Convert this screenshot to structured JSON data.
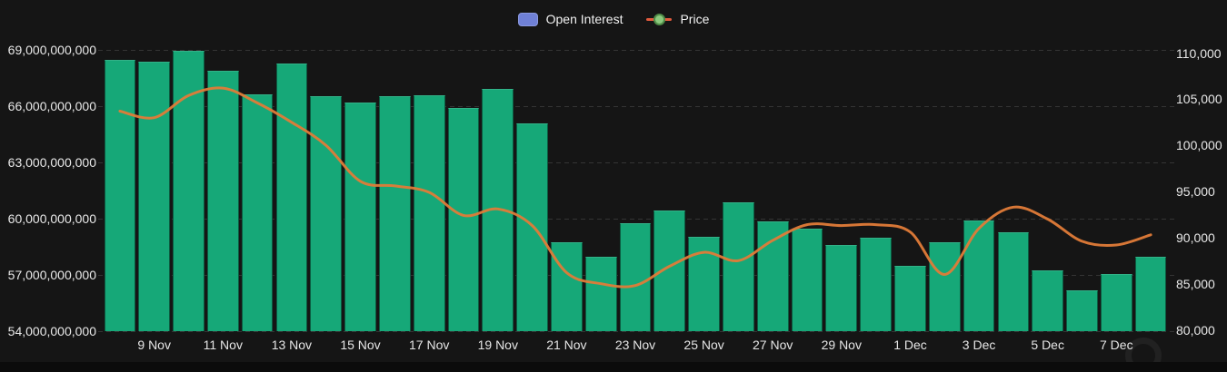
{
  "legend": {
    "open_interest_label": "Open Interest",
    "price_label": "Price"
  },
  "axes": {
    "left_axis_labels": [
      "69,000,000,000",
      "66,000,000,000",
      "63,000,000,000",
      "60,000,000,000",
      "57,000,000,000",
      "54,000,000,000"
    ],
    "right_axis_labels": [
      "110,000",
      "105,000",
      "100,000",
      "95,000",
      "90,000",
      "85,000",
      "80,000"
    ],
    "x_tick_labels": [
      "9 Nov",
      "11 Nov",
      "13 Nov",
      "15 Nov",
      "17 Nov",
      "19 Nov",
      "21 Nov",
      "23 Nov",
      "25 Nov",
      "27 Nov",
      "29 Nov",
      "1 Dec",
      "3 Dec",
      "5 Dec",
      "7 Dec"
    ]
  },
  "colors": {
    "background": "#151515",
    "bar_fill": "#16a878",
    "price_line": "#e07b38",
    "legend_swatch_blue": "#6f80d6",
    "legend_dot_green": "#8cc97e",
    "grid": "#343434",
    "axis_text": "#e8e8e8"
  },
  "chart_data": {
    "type": "bar+line",
    "categories": [
      "8 Nov",
      "9 Nov",
      "10 Nov",
      "11 Nov",
      "12 Nov",
      "13 Nov",
      "14 Nov",
      "15 Nov",
      "16 Nov",
      "17 Nov",
      "18 Nov",
      "19 Nov",
      "20 Nov",
      "21 Nov",
      "22 Nov",
      "23 Nov",
      "24 Nov",
      "25 Nov",
      "26 Nov",
      "27 Nov",
      "28 Nov",
      "29 Nov",
      "30 Nov",
      "1 Dec",
      "2 Dec",
      "3 Dec",
      "4 Dec",
      "5 Dec",
      "6 Dec",
      "7 Dec",
      "8 Dec"
    ],
    "series": [
      {
        "name": "Open Interest",
        "axis": "left",
        "unit": "USD billions",
        "values": [
          68.45,
          68.35,
          68.95,
          67.9,
          66.65,
          68.3,
          66.55,
          66.2,
          66.55,
          66.6,
          65.9,
          66.9,
          65.1,
          58.75,
          57.95,
          59.75,
          60.45,
          59.05,
          60.85,
          59.85,
          59.45,
          58.6,
          59.0,
          57.5,
          58.75,
          59.9,
          59.3,
          57.25,
          56.2,
          57.05,
          57.95
        ]
      },
      {
        "name": "Price",
        "axis": "right",
        "unit": "USD",
        "values": [
          103700,
          103000,
          105400,
          106200,
          104600,
          102500,
          100000,
          96100,
          95600,
          94900,
          92400,
          93100,
          91300,
          86200,
          85000,
          84800,
          86900,
          88400,
          87500,
          89700,
          91400,
          91300,
          91400,
          90600,
          86000,
          91000,
          93300,
          92000,
          89600,
          89200,
          90300
        ]
      }
    ],
    "left_axis": {
      "min": 54,
      "max": 69,
      "step": 3,
      "unit": "billions USD"
    },
    "right_axis": {
      "min": 80000,
      "max": 110000,
      "step": 5000,
      "unit": "USD"
    },
    "grid": "horizontal-dashed",
    "legend_position": "top-center",
    "title": ""
  }
}
